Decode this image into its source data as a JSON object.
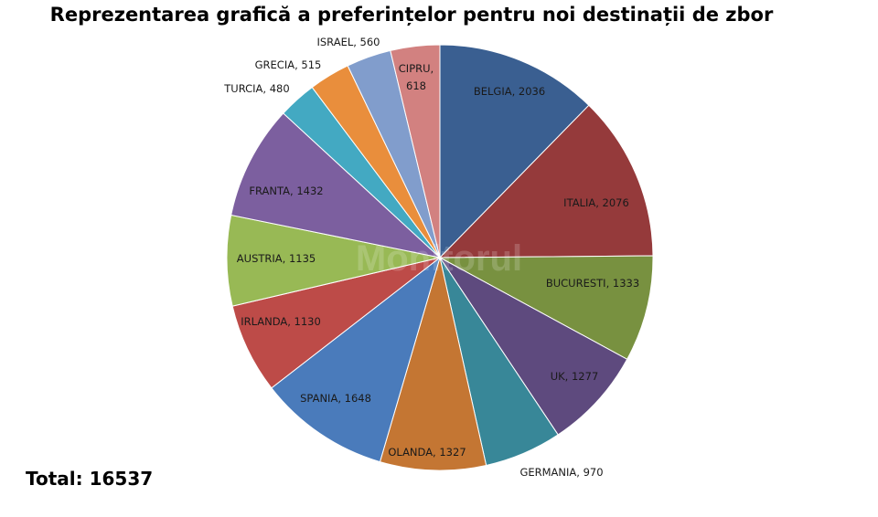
{
  "chart_data": {
    "type": "pie",
    "title": "Reprezentarea grafică a preferințelor pentru noi destinații de zbor",
    "total_label": "Total: 16537",
    "slices": [
      {
        "label": "BELGIA, 2036",
        "value": 2036,
        "color": "#3A5F91"
      },
      {
        "label": "ITALIA, 2076",
        "value": 2076,
        "color": "#953A3B"
      },
      {
        "label": "BUCURESTI, 1333",
        "value": 1333,
        "color": "#789140"
      },
      {
        "label": "UK, 1277",
        "value": 1277,
        "color": "#5E4A7E"
      },
      {
        "label": "GERMANIA, 970",
        "value": 970,
        "color": "#388798"
      },
      {
        "label": "OLANDA, 1327",
        "value": 1327,
        "color": "#C47633"
      },
      {
        "label": "SPANIA, 1648",
        "value": 1648,
        "color": "#4A7BBB"
      },
      {
        "label": "IRLANDA, 1130",
        "value": 1130,
        "color": "#BD4B48"
      },
      {
        "label": "AUSTRIA, 1135",
        "value": 1135,
        "color": "#98B955"
      },
      {
        "label": "FRANTA, 1432",
        "value": 1432,
        "color": "#7C5F9F"
      },
      {
        "label": "TURCIA, 480",
        "value": 480,
        "color": "#43A9C2"
      },
      {
        "label": "GRECIA, 515",
        "value": 515,
        "color": "#E98E3C"
      },
      {
        "label": "ISRAEL, 560",
        "value": 560,
        "color": "#819DCC"
      },
      {
        "label": "CIPRU, 618",
        "value": 618,
        "color": "#D28180"
      }
    ],
    "watermark": "Monitorul"
  }
}
